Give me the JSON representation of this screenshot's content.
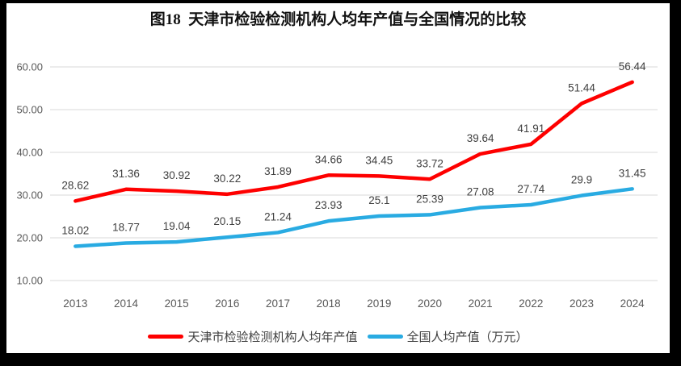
{
  "frame": {
    "border_color": "#000000",
    "background": "#ffffff"
  },
  "chart_data": {
    "type": "line",
    "title": "图18  天津市检验检测机构人均年产值与全国情况的比较",
    "categories": [
      "2013",
      "2014",
      "2015",
      "2016",
      "2017",
      "2018",
      "2019",
      "2020",
      "2021",
      "2022",
      "2023",
      "2024"
    ],
    "series": [
      {
        "name": "天津市检验检测机构人均年产值",
        "color": "#fe0000",
        "values": [
          28.62,
          31.36,
          30.92,
          30.22,
          31.89,
          34.66,
          34.45,
          33.72,
          39.64,
          41.91,
          51.44,
          56.44
        ],
        "labels": [
          "28.62",
          "31.36",
          "30.92",
          "30.22",
          "31.89",
          "34.66",
          "34.45",
          "33.72",
          "39.64",
          "41.91",
          "51.44",
          "56.44"
        ]
      },
      {
        "name": "全国人均产值（万元）",
        "color": "#29abe2",
        "values": [
          18.02,
          18.77,
          19.04,
          20.15,
          21.24,
          23.93,
          25.1,
          25.39,
          27.08,
          27.74,
          29.9,
          31.45
        ],
        "labels": [
          "18.02",
          "18.77",
          "19.04",
          "20.15",
          "21.24",
          "23.93",
          "25.1",
          "25.39",
          "27.08",
          "27.74",
          "29.9",
          "31.45"
        ]
      }
    ],
    "y_axis": {
      "min": 10,
      "max": 60,
      "step": 10,
      "tick_labels": [
        "10.00",
        "20.00",
        "30.00",
        "40.00",
        "50.00",
        "60.00"
      ]
    },
    "xlabel": "",
    "ylabel": "",
    "grid": true,
    "legend_position": "bottom",
    "grid_color": "#d9d9d9",
    "axis_text_color": "#595959",
    "data_label_color": "#3f3f3f"
  }
}
